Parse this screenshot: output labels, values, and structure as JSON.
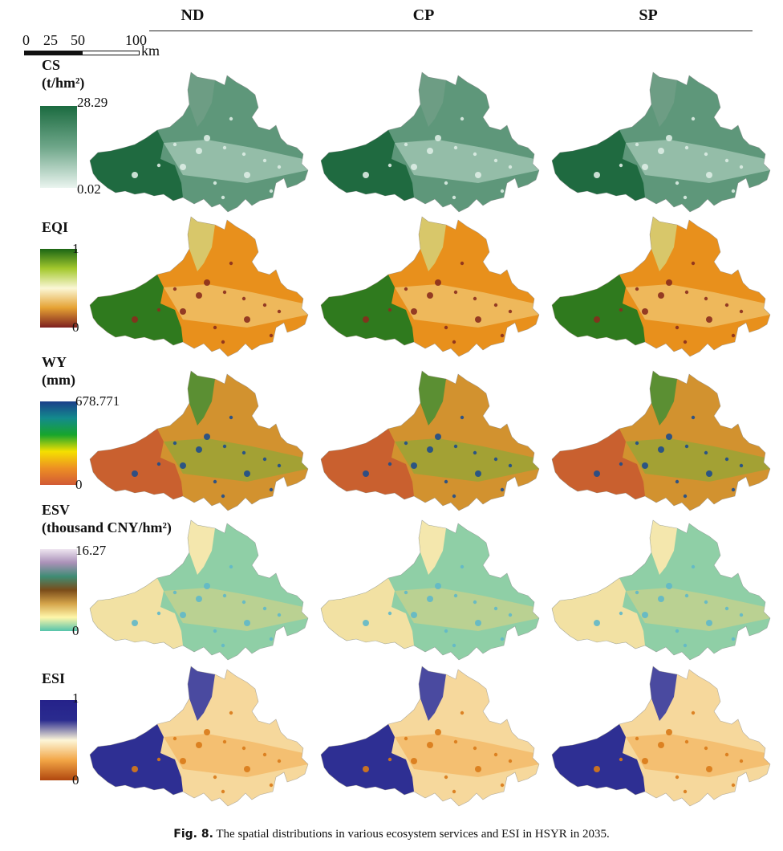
{
  "columns": [
    "ND",
    "CP",
    "SP"
  ],
  "scale_bar": {
    "ticks": [
      "0",
      "25",
      "50",
      "100"
    ],
    "unit": "km"
  },
  "rows": [
    {
      "id": "cs",
      "title_line1": "CS",
      "title_line2": "(t/hm²)",
      "max": "28.29",
      "min": "0.02",
      "ramp": [
        "#1b6b40",
        "#6ea689",
        "#eaf4ef"
      ]
    },
    {
      "id": "eqi",
      "title_line1": "EQI",
      "title_line2": "",
      "max": "1",
      "min": "0",
      "ramp": [
        "#1b6614",
        "#a3c82d",
        "#fbf7d5",
        "#e5a233",
        "#7e1f1f"
      ]
    },
    {
      "id": "wy",
      "title_line1": "WY",
      "title_line2": "(mm)",
      "max": "678.771",
      "min": "0",
      "ramp": [
        "#1b3f8a",
        "#138a8d",
        "#17a52c",
        "#f5e000",
        "#ed8f23",
        "#d25a35"
      ]
    },
    {
      "id": "esv",
      "title_line1": "ESV",
      "title_line2": "(thousand CNY/hm²)",
      "max": "16.27",
      "min": "0",
      "ramp": [
        "#eee5f0",
        "#aa91b8",
        "#3f8c74",
        "#7a4c1a",
        "#d5a44a",
        "#fff6aa",
        "#55c4ab"
      ]
    },
    {
      "id": "esi",
      "title_line1": "ESI",
      "title_line2": "",
      "max": "1",
      "min": "0",
      "ramp": [
        "#25228a",
        "#2a2b8f",
        "#fdf6d9",
        "#f2a545",
        "#b0470e"
      ]
    }
  ],
  "caption": {
    "label": "Fig. 8.",
    "text": "The spatial distributions in various ecosystem services and ESI in HSYR in 2035."
  }
}
